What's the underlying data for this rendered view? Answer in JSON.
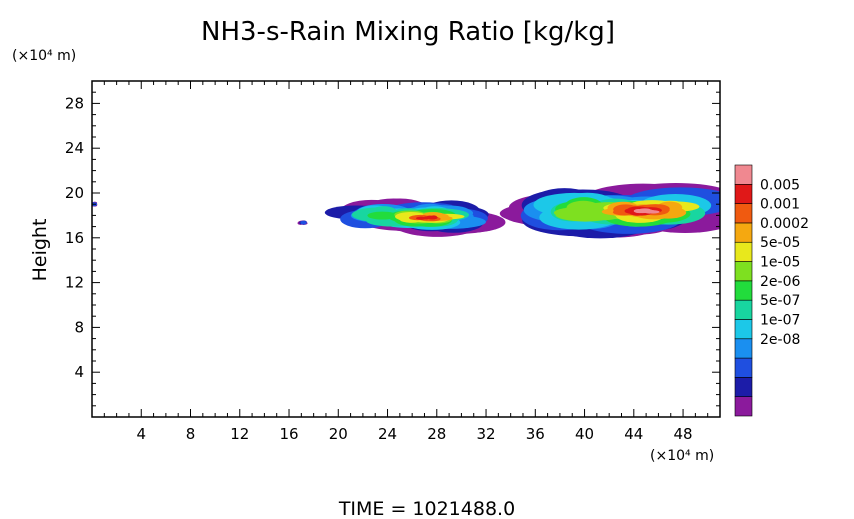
{
  "chart_data": {
    "type": "heatmap",
    "title": "NH3-s-Rain Mixing Ratio [kg/kg]",
    "ylabel": "Height",
    "xunit": "(×10⁴ m)",
    "yunit": "(×10⁴ m)",
    "xlim": [
      0,
      51
    ],
    "ylim": [
      0,
      30
    ],
    "xticks": [
      4,
      8,
      12,
      16,
      20,
      24,
      28,
      32,
      36,
      40,
      44,
      48
    ],
    "yticks": [
      4,
      8,
      12,
      16,
      20,
      24,
      28
    ],
    "time_label": "TIME = 1021488.0",
    "colorbar": {
      "labels": [
        "0.005",
        "0.001",
        "0.0002",
        "5e-05",
        "1e-05",
        "2e-06",
        "5e-07",
        "1e-07",
        "2e-08"
      ],
      "colors": [
        "#8b1a9c",
        "#1c1ca8",
        "#1f4fe0",
        "#1a8ff0",
        "#1cc8e8",
        "#18d6a0",
        "#22dc3c",
        "#7ee020",
        "#e8e81c",
        "#f5a810",
        "#f05a10",
        "#e01818",
        "#f08890"
      ]
    },
    "clouds": [
      {
        "name": "cloud-left-edge",
        "x": [
          0,
          0.3
        ],
        "y": [
          18.8,
          19.2
        ],
        "core": 2
      },
      {
        "name": "cloud-small-17",
        "x": [
          16.8,
          17.4
        ],
        "y": [
          17.2,
          17.5
        ],
        "core": 2
      },
      {
        "name": "cloud-center",
        "x": [
          20.2,
          31.5
        ],
        "y": [
          16.3,
          19.3
        ],
        "core": 11
      },
      {
        "name": "cloud-right",
        "x": [
          35.2,
          50.8
        ],
        "y": [
          16.2,
          20.6
        ],
        "core": 12
      }
    ]
  }
}
